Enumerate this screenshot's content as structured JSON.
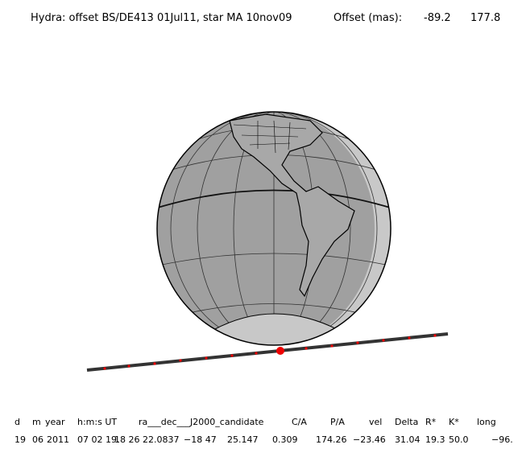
{
  "header": {
    "title": "Hydra: offset BS/DE413 01Jul11, star MA 10nov09",
    "offset_label": "Offset (mas):",
    "offset_values": [
      "-89.2",
      "177.8"
    ]
  },
  "table": {
    "header": [
      "d",
      "m",
      "year",
      "h:m:s UT",
      "ra___dec___J2000_candidate",
      "C/A",
      "P/A",
      "vel",
      "Delta",
      "R*",
      "K*",
      "long"
    ],
    "row": [
      "19",
      "06",
      "2011",
      "07 02 19.",
      "18 26 22.0837",
      "−18 47",
      "25.147",
      "0.309",
      "174.26",
      "−23.46",
      "31.04",
      "19.3",
      "50.0",
      "−96."
    ]
  }
}
